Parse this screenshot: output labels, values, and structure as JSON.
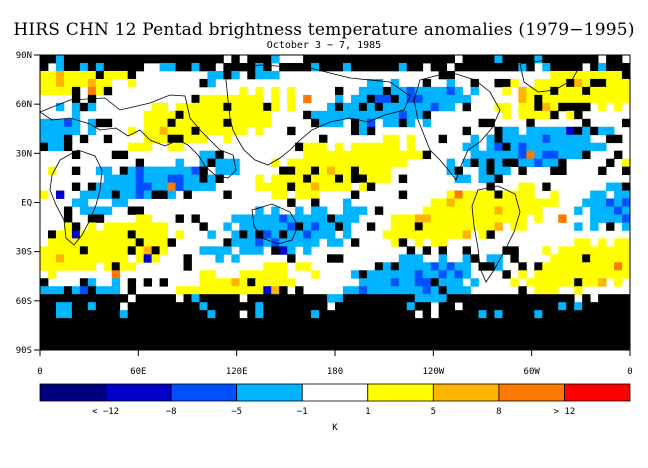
{
  "title": "HIRS CHN 12 Pentad brightness temperature anomalies (1979−1995)",
  "subtitle": "October 3 − 7, 1985",
  "map": {
    "lat_labels": [
      "90N",
      "60N",
      "30N",
      "EQ",
      "30S",
      "60S",
      "90S"
    ],
    "lon_labels": [
      "0",
      "60E",
      "120E",
      "180",
      "120W",
      "60W",
      "0"
    ],
    "land_color": "#ffffff",
    "missing_color": "#000000"
  },
  "colorbar": {
    "unit": "K",
    "colors": [
      "#000080",
      "#0000c8",
      "#0050ff",
      "#00b4ff",
      "#ffffff",
      "#ffff00",
      "#ffb400",
      "#ff7800",
      "#ff0000"
    ],
    "labels": [
      "< −12",
      "−8",
      "−5",
      "−1",
      "1",
      "5",
      "8",
      "> 12"
    ]
  }
}
